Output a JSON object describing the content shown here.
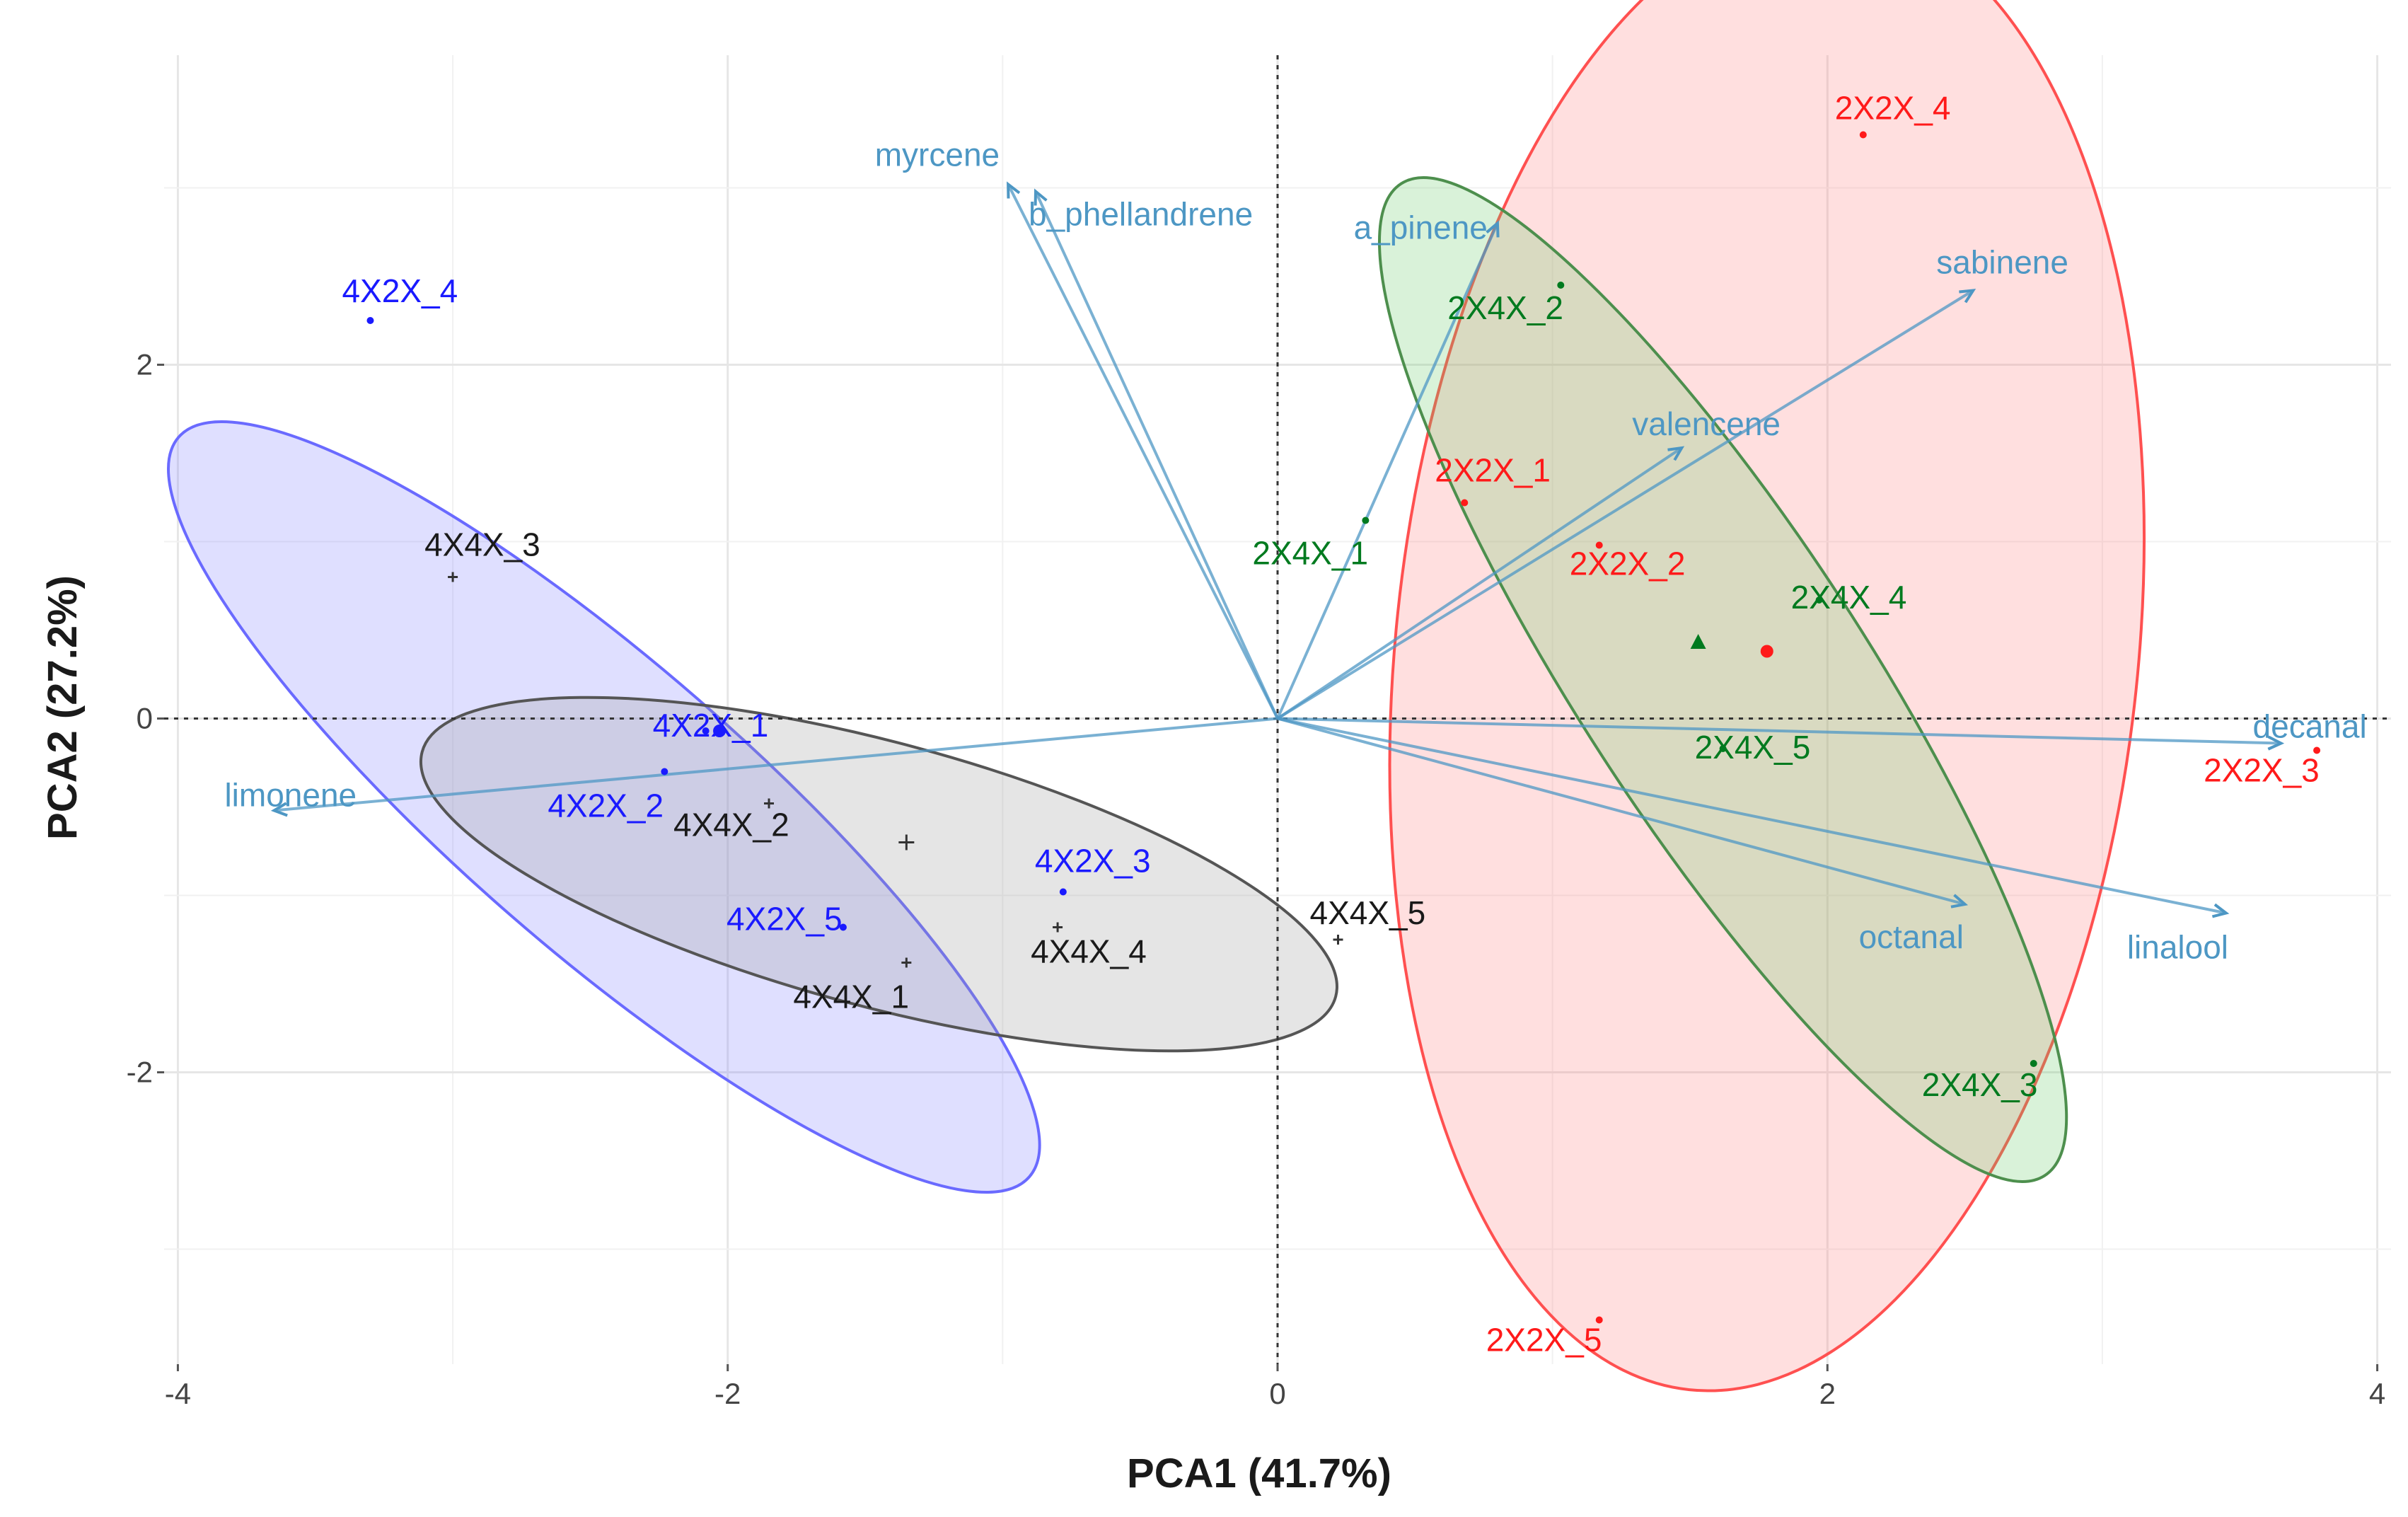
{
  "chart_data": {
    "type": "scatter",
    "subtype": "pca-biplot",
    "xlabel": "PCA1 (41.7%)",
    "ylabel": "PCA2 (27.2%)",
    "xlim": [
      -4.05,
      4.05
    ],
    "ylim": [
      -3.65,
      3.75
    ],
    "x_ticks": [
      -4,
      -2,
      0,
      2,
      4
    ],
    "y_ticks": [
      -2,
      0,
      2
    ],
    "grid": true,
    "reference_lines": {
      "x": 0,
      "y": 0,
      "style": "dotted"
    },
    "colors": {
      "4X2X": "#1a1aff",
      "4X4X": "#1a1a1a",
      "2X2X": "#ff1a1a",
      "2X4X": "#007a1f",
      "variables": "#4d97c4"
    },
    "groups": [
      {
        "id": "4X2X",
        "color": "#1a1aff",
        "ellipse": {
          "cx": -2.45,
          "cy": -0.5,
          "rx": 2.05,
          "ry": 0.52,
          "angle_deg": -41,
          "fill": "#8080ff",
          "stroke": "#6a6aff"
        },
        "centroid": {
          "x": -2.03,
          "y": -0.07
        },
        "points": [
          {
            "label": "4X2X_1",
            "x": -2.08,
            "y": -0.07
          },
          {
            "label": "4X2X_2",
            "x": -2.23,
            "y": -0.3
          },
          {
            "label": "4X2X_3",
            "x": -0.78,
            "y": -0.98
          },
          {
            "label": "4X2X_4",
            "x": -3.3,
            "y": 2.25
          },
          {
            "label": "4X2X_5",
            "x": -1.58,
            "y": -1.18
          }
        ]
      },
      {
        "id": "4X4X",
        "color": "#1a1a1a",
        "ellipse": {
          "cx": -1.45,
          "cy": -0.88,
          "rx": 1.72,
          "ry": 0.48,
          "angle_deg": -15,
          "fill": "#999999",
          "stroke": "#555555"
        },
        "centroid": {
          "x": -1.35,
          "y": -0.7
        },
        "points": [
          {
            "label": "4X4X_1",
            "x": -1.35,
            "y": -1.38
          },
          {
            "label": "4X4X_2",
            "x": -1.85,
            "y": -0.48
          },
          {
            "label": "4X4X_3",
            "x": -3.0,
            "y": 0.8
          },
          {
            "label": "4X4X_4",
            "x": -0.8,
            "y": -1.18
          },
          {
            "label": "4X4X_5",
            "x": 0.22,
            "y": -1.25
          }
        ]
      },
      {
        "id": "2X2X",
        "color": "#ff1a1a",
        "ellipse": {
          "cx": 1.78,
          "cy": 0.38,
          "rx": 2.7,
          "ry": 1.35,
          "angle_deg": 84,
          "fill": "#ff8080",
          "stroke": "#ff5050"
        },
        "centroid": {
          "x": 1.78,
          "y": 0.38
        },
        "points": [
          {
            "label": "2X2X_1",
            "x": 0.68,
            "y": 1.22
          },
          {
            "label": "2X2X_2",
            "x": 1.17,
            "y": 0.98
          },
          {
            "label": "2X2X_3",
            "x": 3.78,
            "y": -0.18
          },
          {
            "label": "2X2X_4",
            "x": 2.13,
            "y": 3.3
          },
          {
            "label": "2X2X_5",
            "x": 1.17,
            "y": -3.4
          }
        ]
      },
      {
        "id": "2X4X",
        "color": "#007a1f",
        "ellipse": {
          "cx": 1.62,
          "cy": 0.22,
          "rx": 2.15,
          "ry": 0.52,
          "angle_deg": -57,
          "fill": "#66cc66",
          "stroke": "#4d8f4d"
        },
        "centroid": {
          "x": 1.53,
          "y": 0.43
        },
        "points": [
          {
            "label": "2X4X_1",
            "x": 0.32,
            "y": 1.12
          },
          {
            "label": "2X4X_2",
            "x": 1.03,
            "y": 2.45
          },
          {
            "label": "2X4X_3",
            "x": 2.75,
            "y": -1.95
          },
          {
            "label": "2X4X_4",
            "x": 1.97,
            "y": 0.67
          },
          {
            "label": "2X4X_5",
            "x": 1.62,
            "y": -0.17
          }
        ]
      }
    ],
    "variables": [
      {
        "name": "myrcene",
        "x": -0.98,
        "y": 3.02
      },
      {
        "name": "b_phellandrene",
        "x": -0.88,
        "y": 2.98
      },
      {
        "name": "a_pinene",
        "x": 0.8,
        "y": 2.8
      },
      {
        "name": "sabinene",
        "x": 2.53,
        "y": 2.42
      },
      {
        "name": "valencene",
        "x": 1.47,
        "y": 1.53
      },
      {
        "name": "decanal",
        "x": 3.65,
        "y": -0.14
      },
      {
        "name": "linalool",
        "x": 3.45,
        "y": -1.1
      },
      {
        "name": "octanal",
        "x": 2.5,
        "y": -1.05
      },
      {
        "name": "limonene",
        "x": -3.65,
        "y": -0.52
      }
    ]
  }
}
